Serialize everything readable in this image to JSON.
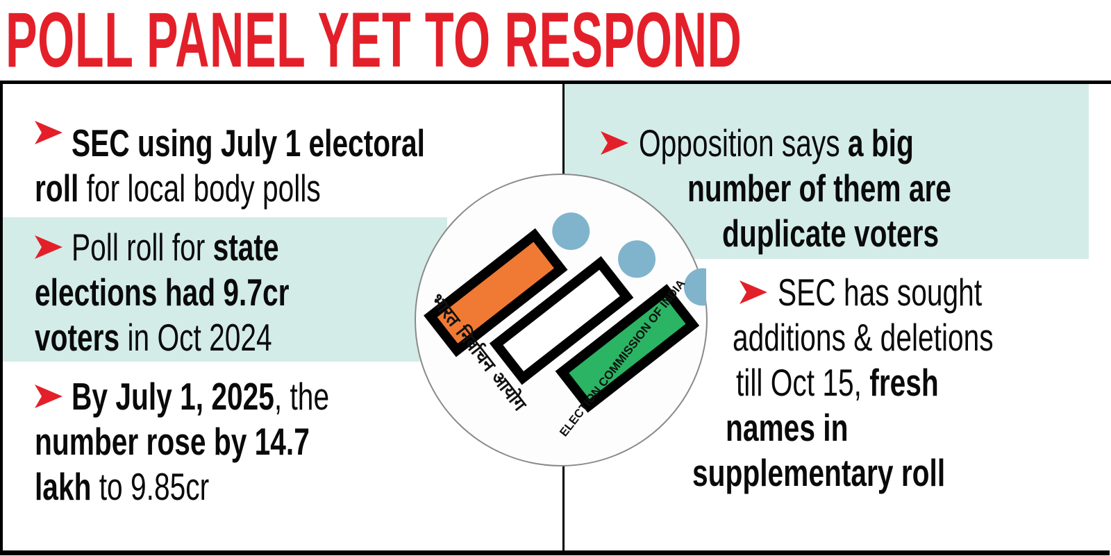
{
  "title": "POLL PANEL YET TO RESPOND",
  "colors": {
    "title": "#e3202a",
    "arrow": "#e3202a",
    "highlight": "#d3ece8",
    "orange": "#f07a33",
    "green": "#2bb463",
    "dot": "#7fb4cc"
  },
  "logo": {
    "hindi_text": "भारत निर्वाचन आयोग",
    "english_text": "ELECTION COMMISSION OF INDIA"
  },
  "left_bullets": [
    {
      "lines": [
        [
          {
            "t": "SEC using July 1 electoral",
            "b": true
          }
        ],
        [
          {
            "t": "roll",
            "b": true
          },
          {
            "t": " for local body polls",
            "b": false
          }
        ]
      ]
    },
    {
      "lines": [
        [
          {
            "t": "Poll roll for ",
            "b": false
          },
          {
            "t": "state",
            "b": true
          }
        ],
        [
          {
            "t": "elections had 9.7cr",
            "b": true
          }
        ],
        [
          {
            "t": "voters",
            "b": true
          },
          {
            "t": " in Oct 2024",
            "b": false
          }
        ]
      ]
    },
    {
      "lines": [
        [
          {
            "t": "By July 1, 2025",
            "b": true
          },
          {
            "t": ", the",
            "b": false
          }
        ],
        [
          {
            "t": "number rose by 14.7",
            "b": true
          }
        ],
        [
          {
            "t": "lakh",
            "b": true
          },
          {
            "t": " to 9.85cr",
            "b": false
          }
        ]
      ]
    }
  ],
  "right_bullets": [
    {
      "lines": [
        [
          {
            "t": "Opposition says ",
            "b": false
          },
          {
            "t": "a big",
            "b": true
          }
        ],
        [
          {
            "t": "number of them are",
            "b": true
          }
        ],
        [
          {
            "t": "duplicate voters",
            "b": true
          }
        ]
      ]
    },
    {
      "lines": [
        [
          {
            "t": "SEC has sought",
            "b": false
          }
        ],
        [
          {
            "t": "additions & deletions",
            "b": false
          }
        ],
        [
          {
            "t": "till Oct 15, ",
            "b": false
          },
          {
            "t": "fresh",
            "b": true
          }
        ],
        [
          {
            "t": "names in",
            "b": true
          }
        ],
        [
          {
            "t": "supplementary roll",
            "b": true
          }
        ]
      ]
    }
  ]
}
